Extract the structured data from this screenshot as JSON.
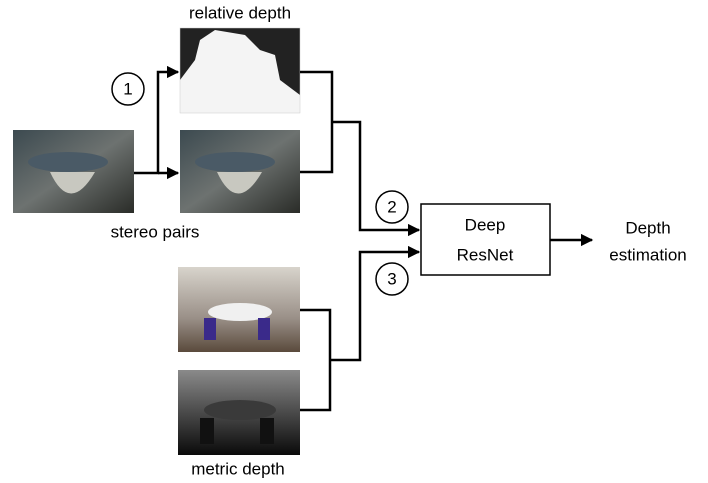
{
  "inputs": {
    "relative_depth": "relative depth",
    "stereo_pairs": "stereo pairs",
    "metric_depth": "metric depth"
  },
  "steps": [
    "1",
    "2",
    "3"
  ],
  "network": {
    "line1": "Deep",
    "line2": "ResNet"
  },
  "output": {
    "line1": "Depth",
    "line2": "estimation"
  }
}
